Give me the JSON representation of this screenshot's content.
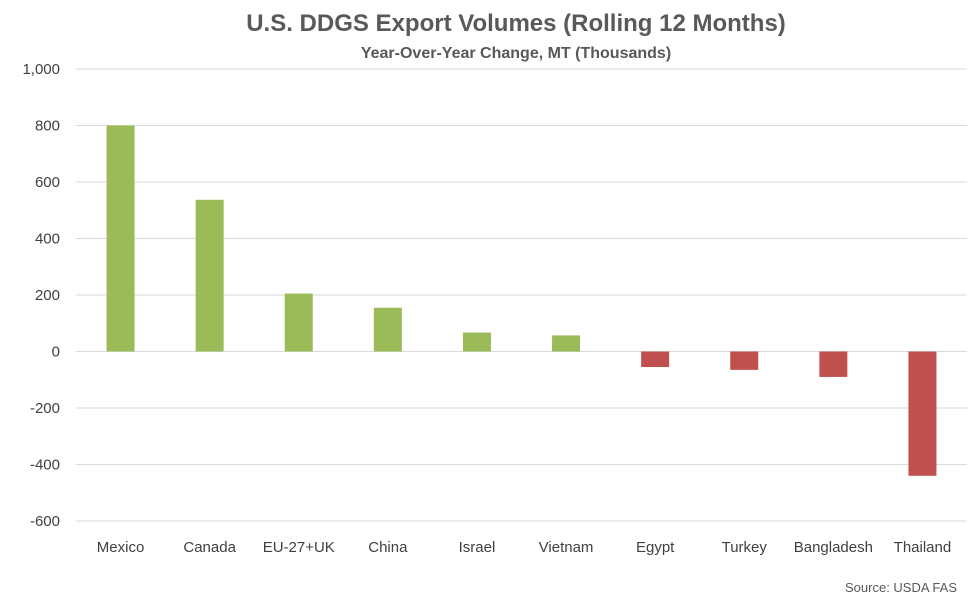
{
  "chart_data": {
    "type": "bar",
    "title": "U.S. DDGS Export Volumes (Rolling 12 Months)",
    "subtitle": "Year-Over-Year Change, MT (Thousands)",
    "categories": [
      "Mexico",
      "Canada",
      "EU-27+UK",
      "China",
      "Israel",
      "Vietnam",
      "Egypt",
      "Turkey",
      "Bangladesh",
      "Thailand"
    ],
    "values": [
      800,
      537,
      205,
      155,
      67,
      57,
      -55,
      -65,
      -90,
      -440
    ],
    "ylim": [
      -600,
      1000
    ],
    "yticks": [
      "1,000",
      "800",
      "600",
      "400",
      "200",
      "0",
      "-200",
      "-400",
      "-600"
    ],
    "ytick_values": [
      1000,
      800,
      600,
      400,
      200,
      0,
      -200,
      -400,
      -600
    ],
    "grid": true,
    "colors": {
      "positive": "#9BBB59",
      "negative": "#C0504D",
      "grid": "#D9D9D9"
    },
    "source": "Source: USDA FAS"
  }
}
